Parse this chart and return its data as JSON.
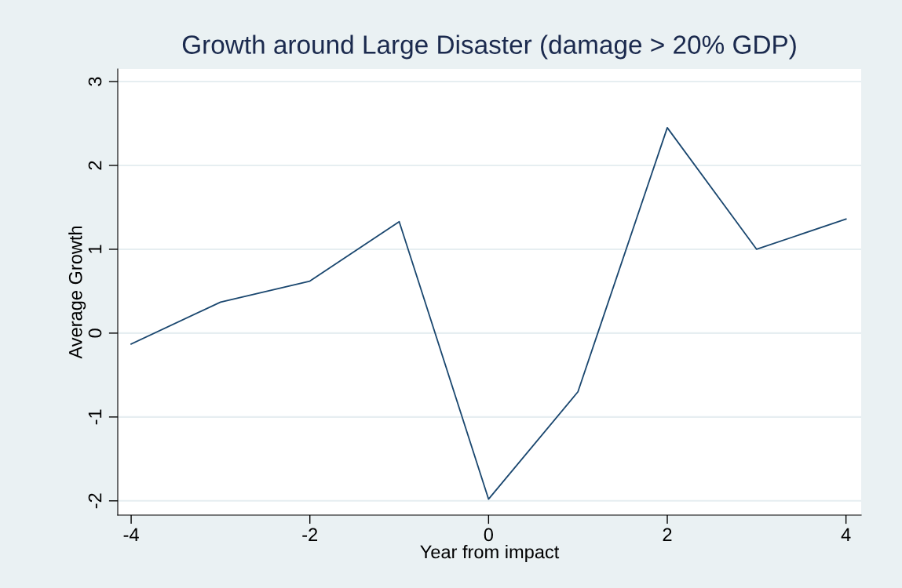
{
  "chart_data": {
    "type": "line",
    "title": "Growth around Large Disaster (damage > 20% GDP)",
    "xlabel": "Year from impact",
    "ylabel": "Average Growth",
    "x": [
      -4,
      -3,
      -2,
      -1,
      0,
      1,
      2,
      3,
      4
    ],
    "series": [
      {
        "color": "#1a476f",
        "values": [
          -0.13,
          0.37,
          0.62,
          1.33,
          -1.98,
          -0.7,
          2.45,
          1.0,
          1.36
        ]
      }
    ],
    "xlim": [
      -4.15,
      4.17
    ],
    "ylim": [
      -2.17,
      3.15
    ],
    "xticks": [
      -4,
      -2,
      0,
      2,
      4
    ],
    "yticks": [
      -2,
      -1,
      0,
      1,
      2,
      3
    ],
    "grid": "y",
    "legend": false
  }
}
